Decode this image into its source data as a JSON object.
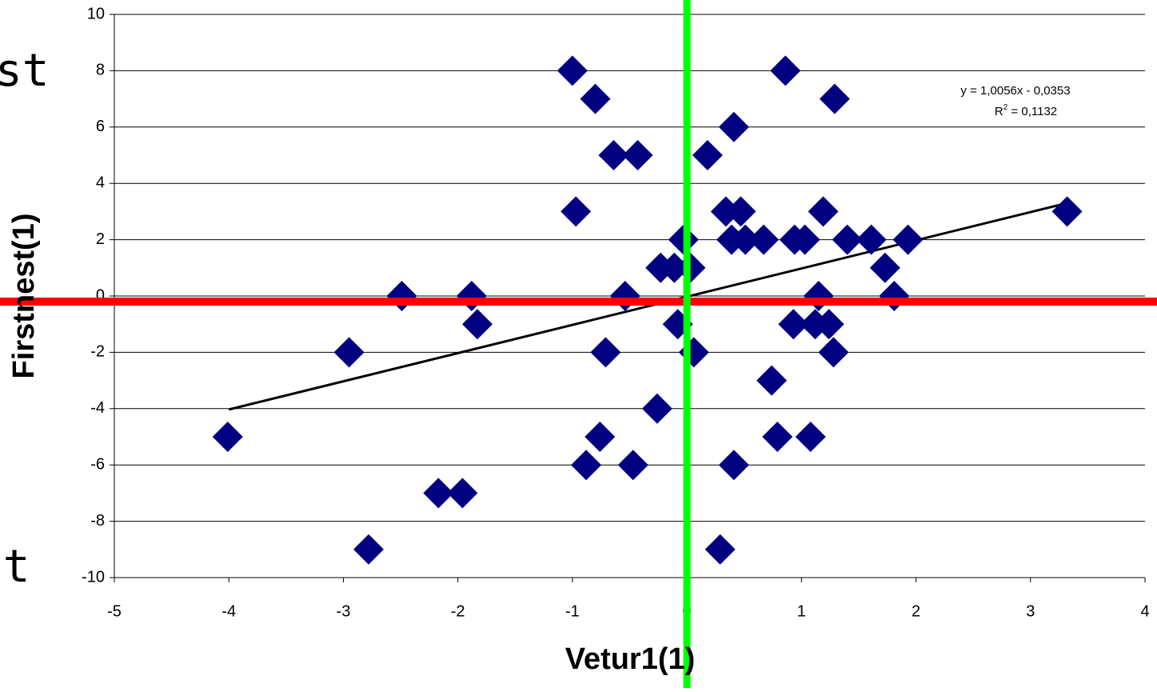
{
  "chart_data": {
    "type": "scatter",
    "x_label": "Vetur1(1)",
    "y_label": "Firstnest(1)",
    "series": [
      {
        "name": "Firstnest(1)",
        "color": "#000080",
        "x": [
          -4.01,
          -2.95,
          -2.78,
          -2.49,
          -2.17,
          -1.96,
          -1.88,
          -1.83,
          -1.0,
          -0.97,
          -0.8,
          -0.76,
          -0.88,
          -0.71,
          -0.64,
          -0.54,
          -0.43,
          -0.47,
          -0.26,
          -0.23,
          -0.11,
          -0.08,
          -0.03,
          0.03,
          0.06,
          0.18,
          0.29,
          0.34,
          0.39,
          0.41,
          0.41,
          0.47,
          0.51,
          0.67,
          0.74,
          0.79,
          0.86,
          0.93,
          0.94,
          1.03,
          1.08,
          1.12,
          1.15,
          1.19,
          1.24,
          1.28,
          1.29,
          1.4,
          1.61,
          1.73,
          1.81,
          1.93,
          3.32
        ],
        "values": [
          -5,
          -2,
          -9,
          0,
          -7,
          -7,
          0,
          -1,
          8,
          3,
          7,
          -5,
          -6,
          -2,
          5,
          0,
          5,
          -6,
          -4,
          1,
          1,
          -1,
          2,
          1,
          -2,
          5,
          -9,
          3,
          2,
          6,
          -6,
          3,
          2,
          2,
          -3,
          -5,
          8,
          -1,
          2,
          2,
          -5,
          -1,
          0,
          3,
          -1,
          -2,
          7,
          2,
          2,
          1,
          0,
          2,
          3
        ]
      }
    ],
    "trendline": {
      "color": "#000000",
      "x": [
        -4.0,
        3.29
      ],
      "values": [
        -4.03,
        3.27
      ],
      "equation": "y = 1,0056x - 0,0353",
      "r2_prefix": "R",
      "r2_sup": "2",
      "r2_rest": " = 0,1132"
    },
    "reference_lines": [
      {
        "axis": "y",
        "value": -0.2,
        "color": "#ff0000"
      },
      {
        "axis": "x",
        "value": 0,
        "color": "#00ff00"
      }
    ],
    "xlim": [
      -5,
      4
    ],
    "xticks": [
      -5,
      -4,
      -3,
      -2,
      -1,
      0,
      1,
      2,
      3,
      4
    ],
    "ylim": [
      -10,
      10
    ],
    "yticks": [
      -10,
      -8,
      -6,
      -4,
      -2,
      0,
      2,
      4,
      6,
      8,
      10
    ],
    "grid": true,
    "background_text": [
      "st",
      "st"
    ]
  }
}
